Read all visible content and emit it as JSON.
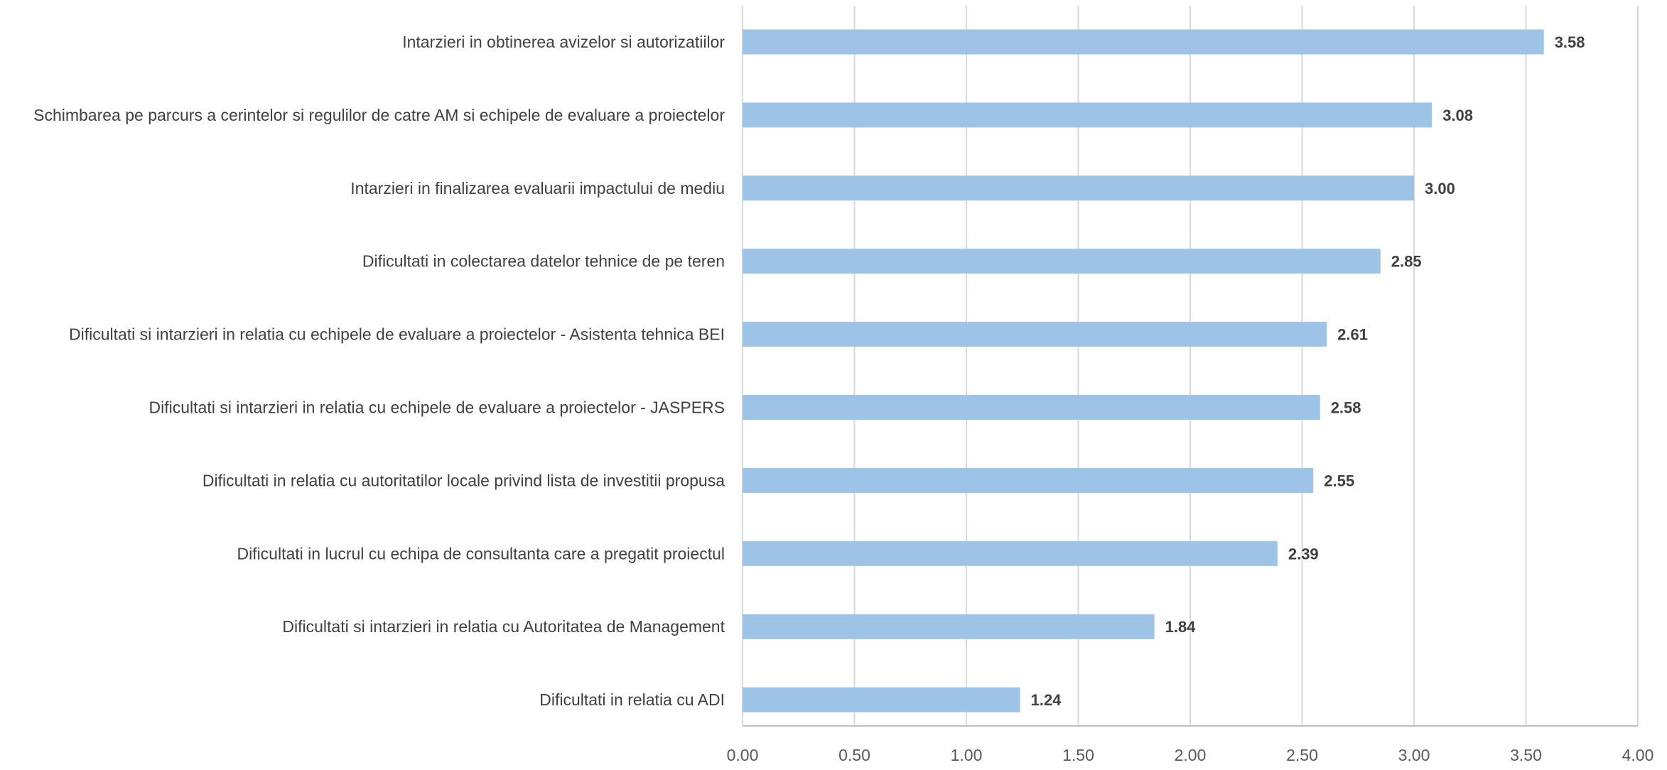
{
  "chart_data": {
    "type": "bar",
    "orientation": "horizontal",
    "title": "",
    "xlabel": "",
    "ylabel": "",
    "categories": [
      "Intarzieri in obtinerea avizelor si autorizatiilor",
      "Schimbarea pe parcurs a cerintelor si regulilor de catre AM si echipele de evaluare a proiectelor",
      "Intarzieri in finalizarea evaluarii impactului de mediu",
      "Dificultati in colectarea datelor tehnice de pe teren",
      "Dificultati si intarzieri in relatia cu echipele de evaluare a proiectelor - Asistenta tehnica BEI",
      "Dificultati si intarzieri in relatia cu echipele de evaluare a proiectelor - JASPERS",
      "Dificultati in relatia cu autoritatilor locale privind lista de investitii propusa",
      "Dificultati in lucrul cu echipa de consultanta care a pregatit proiectul",
      "Dificultati si intarzieri in relatia cu Autoritatea de Management",
      "Dificultati in relatia cu ADI"
    ],
    "values": [
      3.58,
      3.08,
      3.0,
      2.85,
      2.61,
      2.58,
      2.55,
      2.39,
      1.84,
      1.24
    ],
    "value_labels": [
      "3.58",
      "3.08",
      "3.00",
      "2.85",
      "2.61",
      "2.58",
      "2.55",
      "2.39",
      "1.84",
      "1.24"
    ],
    "xlim": [
      0,
      4
    ],
    "x_ticks": [
      "0.00",
      "0.50",
      "1.00",
      "1.50",
      "2.00",
      "2.50",
      "3.00",
      "3.50",
      "4.00"
    ],
    "grid": "vertical",
    "legend": "none",
    "colors": {
      "bar": "#9dc3e6",
      "grid": "#d9d9d9",
      "axis": "#bfbfbf",
      "category_text": "#404040",
      "tick_text": "#595959",
      "data_label_text": "#404040"
    }
  }
}
